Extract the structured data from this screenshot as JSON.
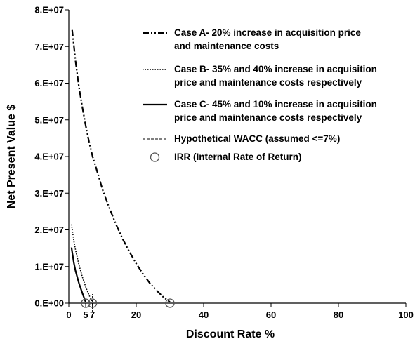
{
  "chart_data": {
    "type": "line",
    "xlabel": "Discount Rate %",
    "ylabel": "Net Present Value $",
    "xlim": [
      0,
      100
    ],
    "ylim": [
      0,
      80000000
    ],
    "x_ticks": [
      {
        "value": 0,
        "label": "0"
      },
      {
        "value": 20,
        "label": "20"
      },
      {
        "value": 40,
        "label": "40"
      },
      {
        "value": 60,
        "label": "60"
      },
      {
        "value": 80,
        "label": "80"
      },
      {
        "value": 100,
        "label": "100"
      }
    ],
    "x_special_ticks": [
      {
        "value": 5,
        "label": "5"
      },
      {
        "value": 7,
        "label": "7"
      }
    ],
    "y_ticks": [
      {
        "value": 0,
        "label": "0.E+00"
      },
      {
        "value": 10000000,
        "label": "1.E+07"
      },
      {
        "value": 20000000,
        "label": "2.E+07"
      },
      {
        "value": 30000000,
        "label": "3.E+07"
      },
      {
        "value": 40000000,
        "label": "4.E+07"
      },
      {
        "value": 50000000,
        "label": "5.E+07"
      },
      {
        "value": 60000000,
        "label": "6.E+07"
      },
      {
        "value": 70000000,
        "label": "7.E+07"
      },
      {
        "value": 80000000,
        "label": "8.E+07"
      }
    ],
    "series": [
      {
        "name": "Case A- 20% increase in acquisition price and maintenance costs",
        "name_lines": [
          "Case A- 20% increase in acquisition price",
          "and maintenance costs"
        ],
        "style": "dash-dot-dot",
        "x": [
          1,
          2,
          3,
          4,
          5,
          6,
          7,
          8,
          10,
          12,
          14,
          16,
          18,
          20,
          22,
          24,
          26,
          28,
          30
        ],
        "y": [
          74500000,
          66000000,
          59000000,
          53500000,
          48500000,
          44000000,
          40200000,
          37200000,
          31000000,
          26000000,
          21500000,
          17500000,
          14000000,
          10800000,
          8000000,
          5500000,
          3500000,
          1700000,
          300000
        ]
      },
      {
        "name": "Case B- 35% and 40% increase in acquisition price and maintenance costs respectively",
        "name_lines": [
          "Case B- 35% and 40% increase in acquisition",
          "price and maintenance costs respectively"
        ],
        "style": "dotted",
        "x": [
          0.8,
          1.5,
          2,
          3,
          4,
          5,
          6,
          7
        ],
        "y": [
          21500000,
          17000000,
          14500000,
          10500000,
          7200000,
          4500000,
          2200000,
          300000
        ]
      },
      {
        "name": "Case C- 45% and 10% increase in acquisition price and maintenance costs respectively",
        "name_lines": [
          "Case C- 45% and 10% increase in acquisition",
          "price and maintenance costs respectively"
        ],
        "style": "solid",
        "x": [
          0.8,
          1.5,
          2,
          3,
          4,
          5
        ],
        "y": [
          15200000,
          11000000,
          8800000,
          5500000,
          2800000,
          300000
        ]
      }
    ],
    "wacc": {
      "name": "Hypothetical WACC (assumed <=7%)",
      "x": 7
    },
    "irr": {
      "name": "IRR (Internal Rate of Return)",
      "points": [
        {
          "x": 5,
          "y": 0
        },
        {
          "x": 7,
          "y": 0
        },
        {
          "x": 30,
          "y": 0
        }
      ]
    }
  }
}
